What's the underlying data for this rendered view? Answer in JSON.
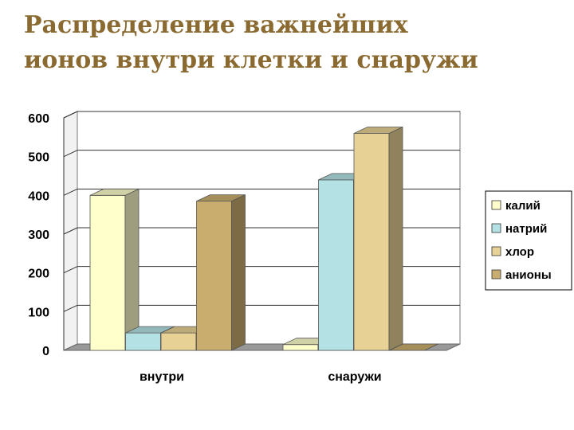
{
  "slide": {
    "title_line1": "Распределение важнейших",
    "title_line2": "ионов внутри клетки и снаружи"
  },
  "chart_data": {
    "type": "bar",
    "categories": [
      "внутри",
      "снаружи"
    ],
    "series": [
      {
        "name": "калий",
        "values": [
          400,
          15
        ],
        "color": "#ffffcc"
      },
      {
        "name": "натрий",
        "values": [
          45,
          440
        ],
        "color": "#b4e2e4"
      },
      {
        "name": "хлор",
        "values": [
          45,
          560
        ],
        "color": "#e8d195"
      },
      {
        "name": "анионы",
        "values": [
          385,
          0
        ],
        "color": "#c8ad6e"
      }
    ],
    "ylim": [
      0,
      600
    ],
    "yticks": [
      0,
      100,
      200,
      300,
      400,
      500,
      600
    ],
    "grid": true,
    "legend": "right",
    "three_d": true
  }
}
